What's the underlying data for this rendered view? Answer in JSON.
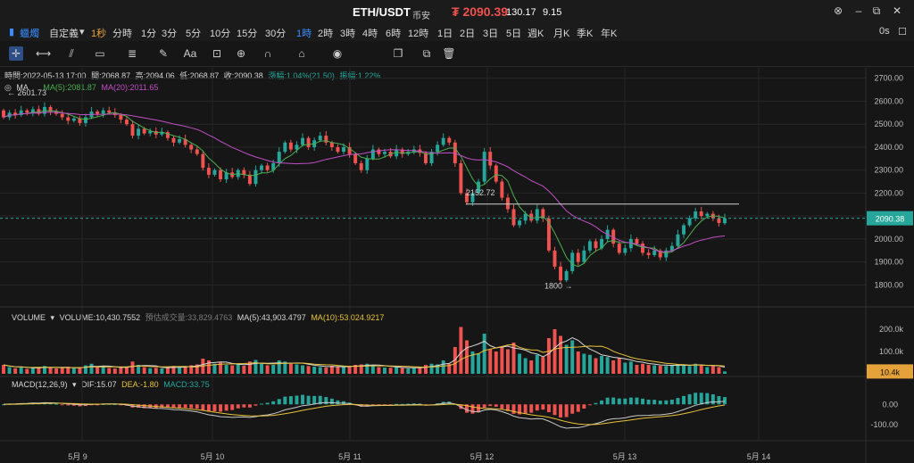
{
  "header": {
    "pair": "ETH/USDT",
    "exchange": "币安",
    "price": "₮ 2090.39",
    "change": "130.17",
    "change_pct": "9.15",
    "reset_label": "0s"
  },
  "timeframes": [
    "1秒",
    "分時",
    "1分",
    "3分",
    "5分",
    "10分",
    "15分",
    "30分",
    "1時",
    "2時",
    "3時",
    "4時",
    "6時",
    "12時",
    "1日",
    "2日",
    "3日",
    "5日",
    "週K",
    "月K",
    "季K",
    "年K"
  ],
  "timeframe_active": "1時",
  "chart_type_label": "蠟燭",
  "custom_label": "自定義",
  "tool_icons": [
    "crosshair-icon",
    "horizontal-line-icon",
    "trend-lines-icon",
    "rectangle-icon",
    "fibonacci-icon",
    "brush-icon",
    "text-icon",
    "measure-icon",
    "zoom-icon",
    "magnet-icon",
    "lock-icon",
    "visibility-icon",
    "copy-icon",
    "clone-icon",
    "delete-icon"
  ],
  "ohlc": {
    "time": "時間:2022-05-13 17:00",
    "open": "開:2068.87",
    "high": "高:2094.06",
    "low": "低:2068.87",
    "close": "收:2090.38",
    "change": "漲幅:1.04%(21.50)",
    "amplitude": "振幅:1.22%"
  },
  "ma_legend": {
    "name": "MA",
    "ma5": "MA(5):2081.87",
    "ma20": "MA(20):2011.65"
  },
  "volume_legend": {
    "name": "VOLUME",
    "volume": "VOLUME:10,430.7552",
    "estimated": "預估成交量:33,829.4763",
    "ma5": "MA(5):43,903.4797",
    "ma10": "MA(10):53,024.9217"
  },
  "macd_legend": {
    "name": "MACD(12,26,9)",
    "dif": "DIF:15.07",
    "dea": "DEA:-1.80",
    "macd": "MACD:33.75"
  },
  "annotations": {
    "max": "2601.73",
    "mid": "2152.72",
    "min": "1800"
  },
  "price_tag": "2090.38",
  "volume_tag": "10.4k",
  "colors": {
    "up": "#26a69a",
    "down": "#ef5350",
    "ma5": "#4caf50",
    "ma20": "#c14fc7",
    "dif": "#c9c9c9",
    "dea": "#e8c33a",
    "accent": "#3a8dff"
  },
  "chart_data": {
    "type": "candlestick",
    "price_axis": {
      "ticks": [
        2700,
        2600,
        2500,
        2400,
        2300,
        2200,
        2100,
        2000,
        1900,
        1800
      ],
      "range": [
        1720,
        2730
      ]
    },
    "volume_axis": {
      "ticks": [
        "200.0k",
        "100.0k"
      ],
      "range": [
        0,
        240000
      ]
    },
    "macd_axis": {
      "ticks": [
        "0.00",
        "-100.00"
      ],
      "range": [
        -160,
        110
      ]
    },
    "x_labels": [
      "5月 9",
      "5月 10",
      "5月 11",
      "5月 12",
      "5月 13",
      "5月 14"
    ],
    "hline": 2152,
    "candles": [
      {
        "o": 2560,
        "c": 2530,
        "v": 40000
      },
      {
        "o": 2530,
        "c": 2550,
        "v": 30000
      },
      {
        "o": 2550,
        "c": 2540,
        "v": 25000
      },
      {
        "o": 2540,
        "c": 2560,
        "v": 28000
      },
      {
        "o": 2560,
        "c": 2550,
        "v": 22000
      },
      {
        "o": 2550,
        "c": 2565,
        "v": 26000
      },
      {
        "o": 2565,
        "c": 2545,
        "v": 30000
      },
      {
        "o": 2545,
        "c": 2575,
        "v": 35000
      },
      {
        "o": 2575,
        "c": 2555,
        "v": 28000
      },
      {
        "o": 2555,
        "c": 2545,
        "v": 24000
      },
      {
        "o": 2545,
        "c": 2530,
        "v": 27000
      },
      {
        "o": 2530,
        "c": 2515,
        "v": 31000
      },
      {
        "o": 2515,
        "c": 2525,
        "v": 25000
      },
      {
        "o": 2525,
        "c": 2505,
        "v": 28000
      },
      {
        "o": 2505,
        "c": 2530,
        "v": 38000
      },
      {
        "o": 2530,
        "c": 2555,
        "v": 45000
      },
      {
        "o": 2555,
        "c": 2545,
        "v": 30000
      },
      {
        "o": 2545,
        "c": 2560,
        "v": 34000
      },
      {
        "o": 2560,
        "c": 2550,
        "v": 26000
      },
      {
        "o": 2550,
        "c": 2540,
        "v": 24000
      },
      {
        "o": 2540,
        "c": 2520,
        "v": 28000
      },
      {
        "o": 2520,
        "c": 2500,
        "v": 32000
      },
      {
        "o": 2500,
        "c": 2450,
        "v": 55000
      },
      {
        "o": 2450,
        "c": 2480,
        "v": 40000
      },
      {
        "o": 2480,
        "c": 2460,
        "v": 30000
      },
      {
        "o": 2460,
        "c": 2470,
        "v": 25000
      },
      {
        "o": 2470,
        "c": 2455,
        "v": 27000
      },
      {
        "o": 2455,
        "c": 2465,
        "v": 24000
      },
      {
        "o": 2465,
        "c": 2440,
        "v": 30000
      },
      {
        "o": 2440,
        "c": 2420,
        "v": 35000
      },
      {
        "o": 2420,
        "c": 2435,
        "v": 28000
      },
      {
        "o": 2435,
        "c": 2410,
        "v": 33000
      },
      {
        "o": 2410,
        "c": 2390,
        "v": 38000
      },
      {
        "o": 2390,
        "c": 2370,
        "v": 42000
      },
      {
        "o": 2370,
        "c": 2310,
        "v": 68000
      },
      {
        "o": 2310,
        "c": 2280,
        "v": 60000
      },
      {
        "o": 2280,
        "c": 2300,
        "v": 45000
      },
      {
        "o": 2300,
        "c": 2260,
        "v": 50000
      },
      {
        "o": 2260,
        "c": 2290,
        "v": 40000
      },
      {
        "o": 2290,
        "c": 2270,
        "v": 38000
      },
      {
        "o": 2270,
        "c": 2300,
        "v": 42000
      },
      {
        "o": 2300,
        "c": 2280,
        "v": 36000
      },
      {
        "o": 2280,
        "c": 2240,
        "v": 55000
      },
      {
        "o": 2240,
        "c": 2300,
        "v": 62000
      },
      {
        "o": 2300,
        "c": 2320,
        "v": 45000
      },
      {
        "o": 2320,
        "c": 2300,
        "v": 38000
      },
      {
        "o": 2300,
        "c": 2330,
        "v": 40000
      },
      {
        "o": 2330,
        "c": 2380,
        "v": 60000
      },
      {
        "o": 2380,
        "c": 2420,
        "v": 55000
      },
      {
        "o": 2420,
        "c": 2390,
        "v": 45000
      },
      {
        "o": 2390,
        "c": 2410,
        "v": 42000
      },
      {
        "o": 2410,
        "c": 2440,
        "v": 38000
      },
      {
        "o": 2440,
        "c": 2400,
        "v": 35000
      },
      {
        "o": 2400,
        "c": 2430,
        "v": 32000
      },
      {
        "o": 2430,
        "c": 2450,
        "v": 30000
      },
      {
        "o": 2450,
        "c": 2420,
        "v": 28000
      },
      {
        "o": 2420,
        "c": 2400,
        "v": 36000
      },
      {
        "o": 2400,
        "c": 2380,
        "v": 34000
      },
      {
        "o": 2380,
        "c": 2400,
        "v": 30000
      },
      {
        "o": 2400,
        "c": 2370,
        "v": 33000
      },
      {
        "o": 2370,
        "c": 2330,
        "v": 40000
      },
      {
        "o": 2330,
        "c": 2300,
        "v": 42000
      },
      {
        "o": 2300,
        "c": 2350,
        "v": 45000
      },
      {
        "o": 2350,
        "c": 2390,
        "v": 38000
      },
      {
        "o": 2390,
        "c": 2370,
        "v": 30000
      },
      {
        "o": 2370,
        "c": 2380,
        "v": 28000
      },
      {
        "o": 2380,
        "c": 2360,
        "v": 27000
      },
      {
        "o": 2360,
        "c": 2390,
        "v": 32000
      },
      {
        "o": 2390,
        "c": 2370,
        "v": 26000
      },
      {
        "o": 2370,
        "c": 2380,
        "v": 24000
      },
      {
        "o": 2380,
        "c": 2390,
        "v": 25000
      },
      {
        "o": 2390,
        "c": 2375,
        "v": 30000
      },
      {
        "o": 2375,
        "c": 2330,
        "v": 40000
      },
      {
        "o": 2330,
        "c": 2380,
        "v": 45000
      },
      {
        "o": 2380,
        "c": 2410,
        "v": 42000
      },
      {
        "o": 2410,
        "c": 2440,
        "v": 60000
      },
      {
        "o": 2440,
        "c": 2420,
        "v": 45000
      },
      {
        "o": 2420,
        "c": 2330,
        "v": 120000
      },
      {
        "o": 2330,
        "c": 2200,
        "v": 210000
      },
      {
        "o": 2200,
        "c": 2160,
        "v": 150000
      },
      {
        "o": 2160,
        "c": 2200,
        "v": 100000
      },
      {
        "o": 2200,
        "c": 2250,
        "v": 90000
      },
      {
        "o": 2250,
        "c": 2380,
        "v": 180000
      },
      {
        "o": 2380,
        "c": 2320,
        "v": 110000
      },
      {
        "o": 2320,
        "c": 2250,
        "v": 100000
      },
      {
        "o": 2250,
        "c": 2180,
        "v": 120000
      },
      {
        "o": 2180,
        "c": 2130,
        "v": 110000
      },
      {
        "o": 2130,
        "c": 2060,
        "v": 140000
      },
      {
        "o": 2060,
        "c": 2080,
        "v": 90000
      },
      {
        "o": 2080,
        "c": 2110,
        "v": 70000
      },
      {
        "o": 2110,
        "c": 2080,
        "v": 60000
      },
      {
        "o": 2080,
        "c": 2130,
        "v": 85000
      },
      {
        "o": 2130,
        "c": 2090,
        "v": 75000
      },
      {
        "o": 2090,
        "c": 1950,
        "v": 160000
      },
      {
        "o": 1950,
        "c": 1880,
        "v": 200000
      },
      {
        "o": 1880,
        "c": 1820,
        "v": 170000
      },
      {
        "o": 1820,
        "c": 1860,
        "v": 130000
      },
      {
        "o": 1860,
        "c": 1940,
        "v": 150000
      },
      {
        "o": 1940,
        "c": 1900,
        "v": 100000
      },
      {
        "o": 1900,
        "c": 1950,
        "v": 90000
      },
      {
        "o": 1950,
        "c": 1990,
        "v": 85000
      },
      {
        "o": 1990,
        "c": 1960,
        "v": 70000
      },
      {
        "o": 1960,
        "c": 2000,
        "v": 80000
      },
      {
        "o": 2000,
        "c": 2040,
        "v": 75000
      },
      {
        "o": 2040,
        "c": 1980,
        "v": 60000
      },
      {
        "o": 1980,
        "c": 1940,
        "v": 70000
      },
      {
        "o": 1940,
        "c": 1960,
        "v": 50000
      },
      {
        "o": 1960,
        "c": 2000,
        "v": 55000
      },
      {
        "o": 2000,
        "c": 1980,
        "v": 40000
      },
      {
        "o": 1980,
        "c": 1940,
        "v": 45000
      },
      {
        "o": 1940,
        "c": 1930,
        "v": 40000
      },
      {
        "o": 1930,
        "c": 1950,
        "v": 38000
      },
      {
        "o": 1950,
        "c": 1920,
        "v": 36000
      },
      {
        "o": 1920,
        "c": 1950,
        "v": 35000
      },
      {
        "o": 1950,
        "c": 1970,
        "v": 40000
      },
      {
        "o": 1970,
        "c": 2020,
        "v": 42000
      },
      {
        "o": 2020,
        "c": 2060,
        "v": 38000
      },
      {
        "o": 2060,
        "c": 2090,
        "v": 35000
      },
      {
        "o": 2090,
        "c": 2120,
        "v": 45000
      },
      {
        "o": 2120,
        "c": 2100,
        "v": 40000
      },
      {
        "o": 2100,
        "c": 2110,
        "v": 30000
      },
      {
        "o": 2110,
        "c": 2090,
        "v": 35000
      },
      {
        "o": 2090,
        "c": 2070,
        "v": 30000
      },
      {
        "o": 2068.87,
        "c": 2090.38,
        "v": 10430
      }
    ]
  }
}
